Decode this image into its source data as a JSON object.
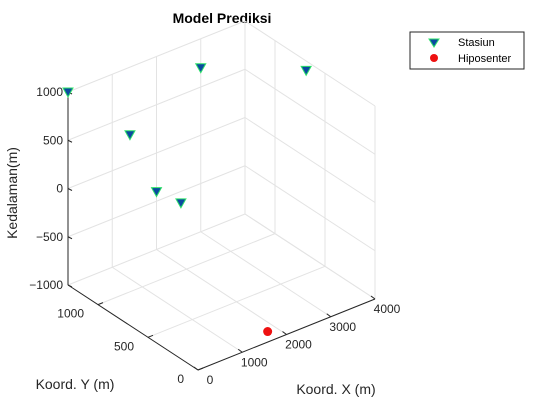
{
  "chart_data": {
    "type": "scatter3d",
    "title": "Model Prediksi",
    "xlabel": "Koord. X (m)",
    "ylabel": "Koord. Y (m)",
    "zlabel": "Kedalaman(m)",
    "xlim": [
      0,
      4000
    ],
    "ylim": [
      0,
      1300
    ],
    "zlim": [
      -1000,
      1000
    ],
    "xticks": [
      {
        "v": 0,
        "t": "0"
      },
      {
        "v": 1000,
        "t": "1000"
      },
      {
        "v": 2000,
        "t": "2000"
      },
      {
        "v": 3000,
        "t": "3000"
      },
      {
        "v": 4000,
        "t": "4000"
      }
    ],
    "yticks": [
      {
        "v": 0,
        "t": "0"
      },
      {
        "v": 500,
        "t": "500"
      },
      {
        "v": 1000,
        "t": "1000"
      }
    ],
    "zticks": [
      {
        "v": -1000,
        "t": "−1000"
      },
      {
        "v": -500,
        "t": "−500"
      },
      {
        "v": 0,
        "t": "0"
      },
      {
        "v": 500,
        "t": "500"
      },
      {
        "v": 1000,
        "t": "1000"
      }
    ],
    "grid": true,
    "legend_position": "top-right",
    "series": [
      {
        "name": "Stasiun",
        "marker": "triangle-down",
        "color": "#0a4aa0",
        "edge_color": "#2ee06a",
        "points": [
          {
            "x": 0,
            "y": 1300,
            "z": 1000
          },
          {
            "x": 1400,
            "y": 1300,
            "z": 300
          },
          {
            "x": 2000,
            "y": 1300,
            "z": -400
          },
          {
            "x": 2100,
            "y": 1100,
            "z": -400
          },
          {
            "x": 3000,
            "y": 1300,
            "z": 700
          },
          {
            "x": 3800,
            "y": 600,
            "z": 1000
          }
        ]
      },
      {
        "name": "Hiposenter",
        "marker": "circle",
        "color": "#ee1111",
        "points": [
          {
            "x": 1800,
            "y": 100,
            "z": -1000
          }
        ]
      }
    ]
  }
}
